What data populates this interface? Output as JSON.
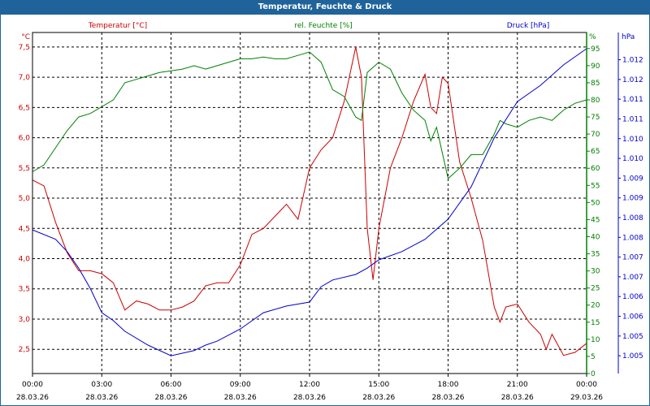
{
  "window": {
    "title": "Temperatur, Feuchte & Druck"
  },
  "colors": {
    "temperature": "#cc0000",
    "humidity": "#008000",
    "pressure": "#0000cc",
    "titlebar": "#20639b"
  },
  "chart_data": {
    "type": "line",
    "title": "Temperatur, Feuchte & Druck",
    "xlabel": "",
    "x_ticks": [
      {
        "time": "00:00",
        "date": "28.03.26",
        "h": 0
      },
      {
        "time": "03:00",
        "date": "28.03.26",
        "h": 3
      },
      {
        "time": "06:00",
        "date": "28.03.26",
        "h": 6
      },
      {
        "time": "09:00",
        "date": "28.03.26",
        "h": 9
      },
      {
        "time": "12:00",
        "date": "28.03.26",
        "h": 12
      },
      {
        "time": "15:00",
        "date": "28.03.26",
        "h": 15
      },
      {
        "time": "18:00",
        "date": "28.03.26",
        "h": 18
      },
      {
        "time": "21:00",
        "date": "28.03.26",
        "h": 21
      },
      {
        "time": "00:00",
        "date": "29.03.26",
        "h": 24
      }
    ],
    "xlim": [
      0,
      24
    ],
    "axes": {
      "temperature": {
        "label": "Temperatur [°C]",
        "unit": "°C",
        "ylim": [
          2.1,
          7.74
        ],
        "ticks": [
          "7,5",
          "7,0",
          "6,5",
          "6,0",
          "5,5",
          "5,0",
          "4,5",
          "4,0",
          "3,5",
          "3,0",
          "2,5"
        ],
        "tick_values": [
          7.5,
          7.0,
          6.5,
          6.0,
          5.5,
          5.0,
          4.5,
          4.0,
          3.5,
          3.0,
          2.5
        ]
      },
      "humidity": {
        "label": "rel. Feuchte [%]",
        "unit": "%",
        "ylim": [
          0,
          99.7
        ],
        "ticks": [
          "95",
          "90",
          "85",
          "80",
          "75",
          "70",
          "65",
          "60",
          "55",
          "50",
          "45",
          "40",
          "35",
          "30",
          "25",
          "20",
          "15",
          "10",
          "5",
          "0"
        ],
        "tick_values": [
          95,
          90,
          85,
          80,
          75,
          70,
          65,
          60,
          55,
          50,
          45,
          40,
          35,
          30,
          25,
          20,
          15,
          10,
          5,
          0
        ]
      },
      "pressure": {
        "label": "Druck [hPa]",
        "unit": "hPa",
        "ylim": [
          1004.25,
          1012.89
        ],
        "ticks": [
          "1.012",
          "1.012",
          "1.011",
          "1.011",
          "1.010",
          "1.010",
          "1.009",
          "1.009",
          "1.008",
          "1.008",
          "1.007",
          "1.007",
          "1.006",
          "1.006",
          "1.005",
          "1.005"
        ],
        "tick_values": [
          1012.2,
          1011.7,
          1011.2,
          1010.7,
          1010.2,
          1009.7,
          1009.2,
          1008.7,
          1008.2,
          1007.7,
          1007.2,
          1006.7,
          1006.2,
          1005.7,
          1005.2,
          1004.7
        ]
      }
    },
    "series": [
      {
        "name": "Temperatur [°C]",
        "axis": "temperature",
        "x": [
          0,
          0.5,
          1,
          1.5,
          2,
          2.5,
          3,
          3.5,
          4,
          4.5,
          5,
          5.5,
          6,
          6.5,
          7,
          7.5,
          8,
          8.5,
          9,
          9.5,
          10,
          10.5,
          11,
          11.5,
          12,
          12.5,
          13,
          13.5,
          14,
          14.25,
          14.5,
          14.75,
          15,
          15.5,
          16,
          16.5,
          17,
          17.25,
          17.5,
          17.75,
          18,
          18.5,
          19,
          19.5,
          20,
          20.25,
          20.5,
          21,
          21.5,
          22,
          22.25,
          22.5,
          23,
          23.5,
          24
        ],
        "values": [
          5.3,
          5.2,
          4.6,
          4.1,
          3.8,
          3.8,
          3.75,
          3.6,
          3.15,
          3.3,
          3.25,
          3.15,
          3.15,
          3.2,
          3.3,
          3.55,
          3.6,
          3.6,
          3.9,
          4.4,
          4.5,
          4.7,
          4.9,
          4.65,
          5.5,
          5.8,
          6.0,
          6.6,
          7.5,
          7.0,
          4.5,
          3.65,
          4.5,
          5.5,
          6.0,
          6.6,
          7.05,
          6.5,
          6.4,
          7.0,
          6.9,
          5.6,
          5.0,
          4.3,
          3.2,
          2.95,
          3.2,
          3.25,
          2.95,
          2.75,
          2.5,
          2.75,
          2.4,
          2.45,
          2.6
        ]
      },
      {
        "name": "rel. Feuchte [%]",
        "axis": "humidity",
        "x": [
          0,
          0.5,
          1,
          1.5,
          2,
          2.5,
          3,
          3.5,
          4,
          4.5,
          5,
          5.5,
          6,
          6.5,
          7,
          7.5,
          8,
          8.5,
          9,
          9.5,
          10,
          10.5,
          11,
          11.5,
          12,
          12.5,
          13,
          13.5,
          14,
          14.25,
          14.5,
          15,
          15.5,
          16,
          16.5,
          17,
          17.25,
          17.5,
          18,
          18.5,
          19,
          19.5,
          20,
          20.25,
          20.5,
          21,
          21.5,
          22,
          22.5,
          23,
          23.5,
          24
        ],
        "values": [
          59,
          61,
          66,
          71,
          75,
          76,
          78,
          80,
          85,
          86,
          87,
          88,
          88.5,
          89,
          90,
          89,
          90,
          91,
          92,
          92,
          92.5,
          92,
          92,
          93,
          94,
          91,
          83,
          81,
          75,
          74,
          88,
          91,
          89,
          82,
          77,
          74,
          68,
          72,
          57,
          60,
          64,
          64,
          70,
          74,
          73,
          72,
          74,
          75,
          74,
          77,
          79,
          80
        ]
      },
      {
        "name": "Druck [hPa]",
        "axis": "pressure",
        "x": [
          0,
          1,
          1.5,
          2,
          2.5,
          3,
          3.5,
          4,
          5,
          6,
          7,
          7.5,
          8,
          9,
          10,
          11,
          12,
          12.5,
          13,
          14,
          14.5,
          15,
          16,
          17,
          18,
          19,
          20,
          21,
          22,
          23,
          24
        ],
        "values": [
          1007.89,
          1007.65,
          1007.34,
          1006.92,
          1006.41,
          1005.79,
          1005.59,
          1005.32,
          1004.97,
          1004.7,
          1004.83,
          1004.97,
          1005.07,
          1005.38,
          1005.79,
          1005.96,
          1006.06,
          1006.45,
          1006.62,
          1006.76,
          1006.92,
          1007.13,
          1007.34,
          1007.65,
          1008.16,
          1008.98,
          1010.22,
          1011.14,
          1011.55,
          1012.07,
          1012.48
        ]
      }
    ],
    "grid": true,
    "legend": "top"
  }
}
